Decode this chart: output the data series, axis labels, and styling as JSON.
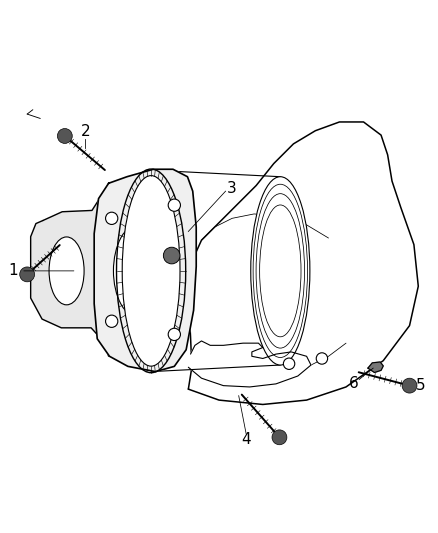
{
  "title": "",
  "bg_color": "#ffffff",
  "line_color": "#000000",
  "line_width": 0.8,
  "fig_width": 4.38,
  "fig_height": 5.33,
  "dpi": 100,
  "label_fontsize": 11
}
